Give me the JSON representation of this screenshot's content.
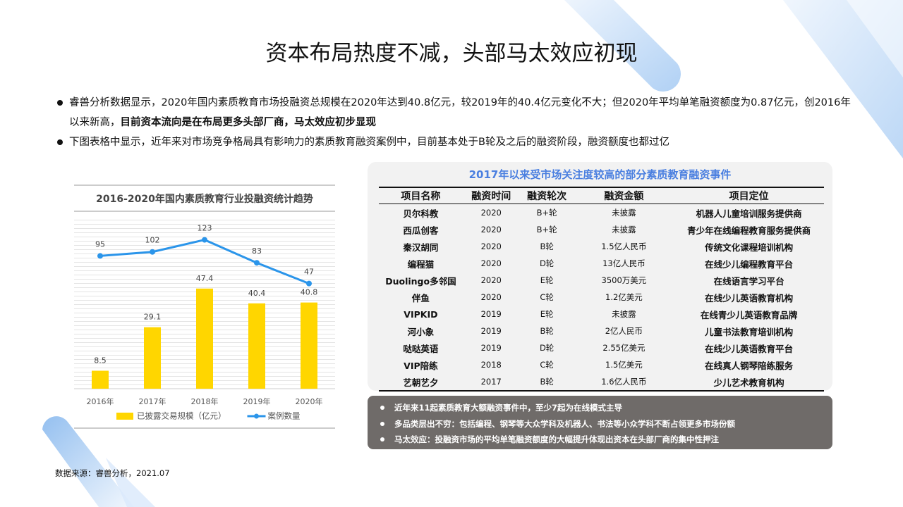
{
  "title": "资本布局热度不减，头部马太效应初现",
  "bullets": [
    {
      "text": "睿兽分析数据显示，2020年国内素质教育市场投融资总规模在2020年达到40.8亿元，较2019年的40.4亿元变化不大；但2020年平均单笔融资额度为0.87亿元，创2016年以来新高，",
      "bold": "目前资本流向是在布局更多头部厂商，马太效应初步显现"
    },
    {
      "text": "下图表格中显示，近年来对市场竞争格局具有影响力的素质教育融资案例中，目前基本处于B轮及之后的融资阶段，融资额度也都过亿"
    }
  ],
  "chart_data": {
    "type": "bar",
    "title": "2016-2020年国内素质教育行业投融资统计趋势",
    "categories": [
      "2016年",
      "2017年",
      "2018年",
      "2019年",
      "2020年"
    ],
    "ylim": [
      0,
      80
    ],
    "y2lim": [
      -136,
      158
    ],
    "series": [
      {
        "name": "已披露交易规模（亿元）",
        "type": "bar",
        "color": "#ffd600",
        "values": [
          8.5,
          29.1,
          47.4,
          40.4,
          40.8
        ]
      },
      {
        "name": "案例数量",
        "type": "line",
        "axis": "y2",
        "color": "#2b95ea",
        "values": [
          95,
          102,
          123,
          83,
          47
        ]
      }
    ]
  },
  "table": {
    "title": "2017年以来受市场关注度较高的部分素质教育融资事件",
    "header": [
      "项目名称",
      "融资时间",
      "融资轮次",
      "融资金额",
      "项目定位"
    ],
    "rows": [
      [
        "贝尔科教",
        "2020",
        "B+轮",
        "未披露",
        "机器人儿童培训服务提供商"
      ],
      [
        "西瓜创客",
        "2020",
        "B+轮",
        "未披露",
        "青少年在线编程教育服务提供商"
      ],
      [
        "秦汉胡同",
        "2020",
        "B轮",
        "1.5亿人民币",
        "传统文化课程培训机构"
      ],
      [
        "编程猫",
        "2020",
        "D轮",
        "13亿人民币",
        "在线少儿编程教育平台"
      ],
      [
        "Duolingo多邻国",
        "2020",
        "E轮",
        "3500万美元",
        "在线语言学习平台"
      ],
      [
        "伴鱼",
        "2020",
        "C轮",
        "1.2亿美元",
        "在线少儿英语教育机构"
      ],
      [
        "VIPKID",
        "2019",
        "E轮",
        "未披露",
        "在线青少儿英语教育品牌"
      ],
      [
        "河小象",
        "2019",
        "B轮",
        "2亿人民币",
        "儿童书法教育培训机构"
      ],
      [
        "哒哒英语",
        "2019",
        "D轮",
        "2.55亿美元",
        "在线少儿英语教育平台"
      ],
      [
        "VIP陪练",
        "2018",
        "C轮",
        "1.5亿美元",
        "在线真人钢琴陪练服务"
      ],
      [
        "艺朝艺夕",
        "2017",
        "B轮",
        "1.6亿人民币",
        "少儿艺术教育机构"
      ]
    ]
  },
  "notes": [
    "近年来11起素质教育大额融资事件中，至少7起为在线模式主导",
    "多品类层出不穷：包括编程、钢琴等大众学科及机器人、书法等小众学科不断占领更多市场份额",
    "马太效应：投融资市场的平均单笔融资额度的大幅提升体现出资本在头部厂商的集中性押注"
  ],
  "source": "数据来源：睿兽分析，2021.07"
}
